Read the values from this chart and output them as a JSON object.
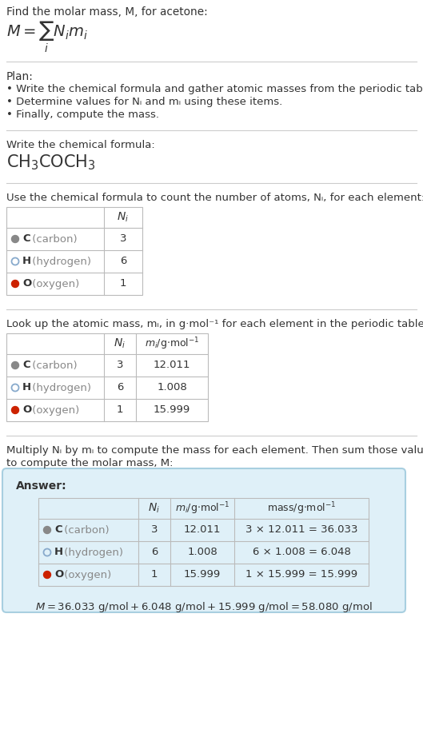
{
  "bg_color": "#ffffff",
  "text_color": "#333333",
  "gray_text_color": "#888888",
  "table_border_color": "#bbbbbb",
  "sep_line_color": "#cccccc",
  "answer_bg": "#dff0f8",
  "answer_border": "#a8cfe0",
  "dot_colors": [
    "#888888",
    "#ffffff",
    "#cc2200"
  ],
  "dot_edge_colors": [
    "#888888",
    "#88aacc",
    "#cc2200"
  ],
  "elements": [
    "C (carbon)",
    "H (hydrogen)",
    "O (oxygen)"
  ],
  "N_i": [
    3,
    6,
    1
  ],
  "m_i": [
    12.011,
    1.008,
    15.999
  ],
  "mass_expr": [
    "3 × 12.011 = 36.033",
    "6 × 1.008 = 6.048",
    "1 × 15.999 = 15.999"
  ],
  "answer_line": "M = 36.033 g/mol + 6.048 g/mol + 15.999 g/mol = 58.080 g/mol"
}
